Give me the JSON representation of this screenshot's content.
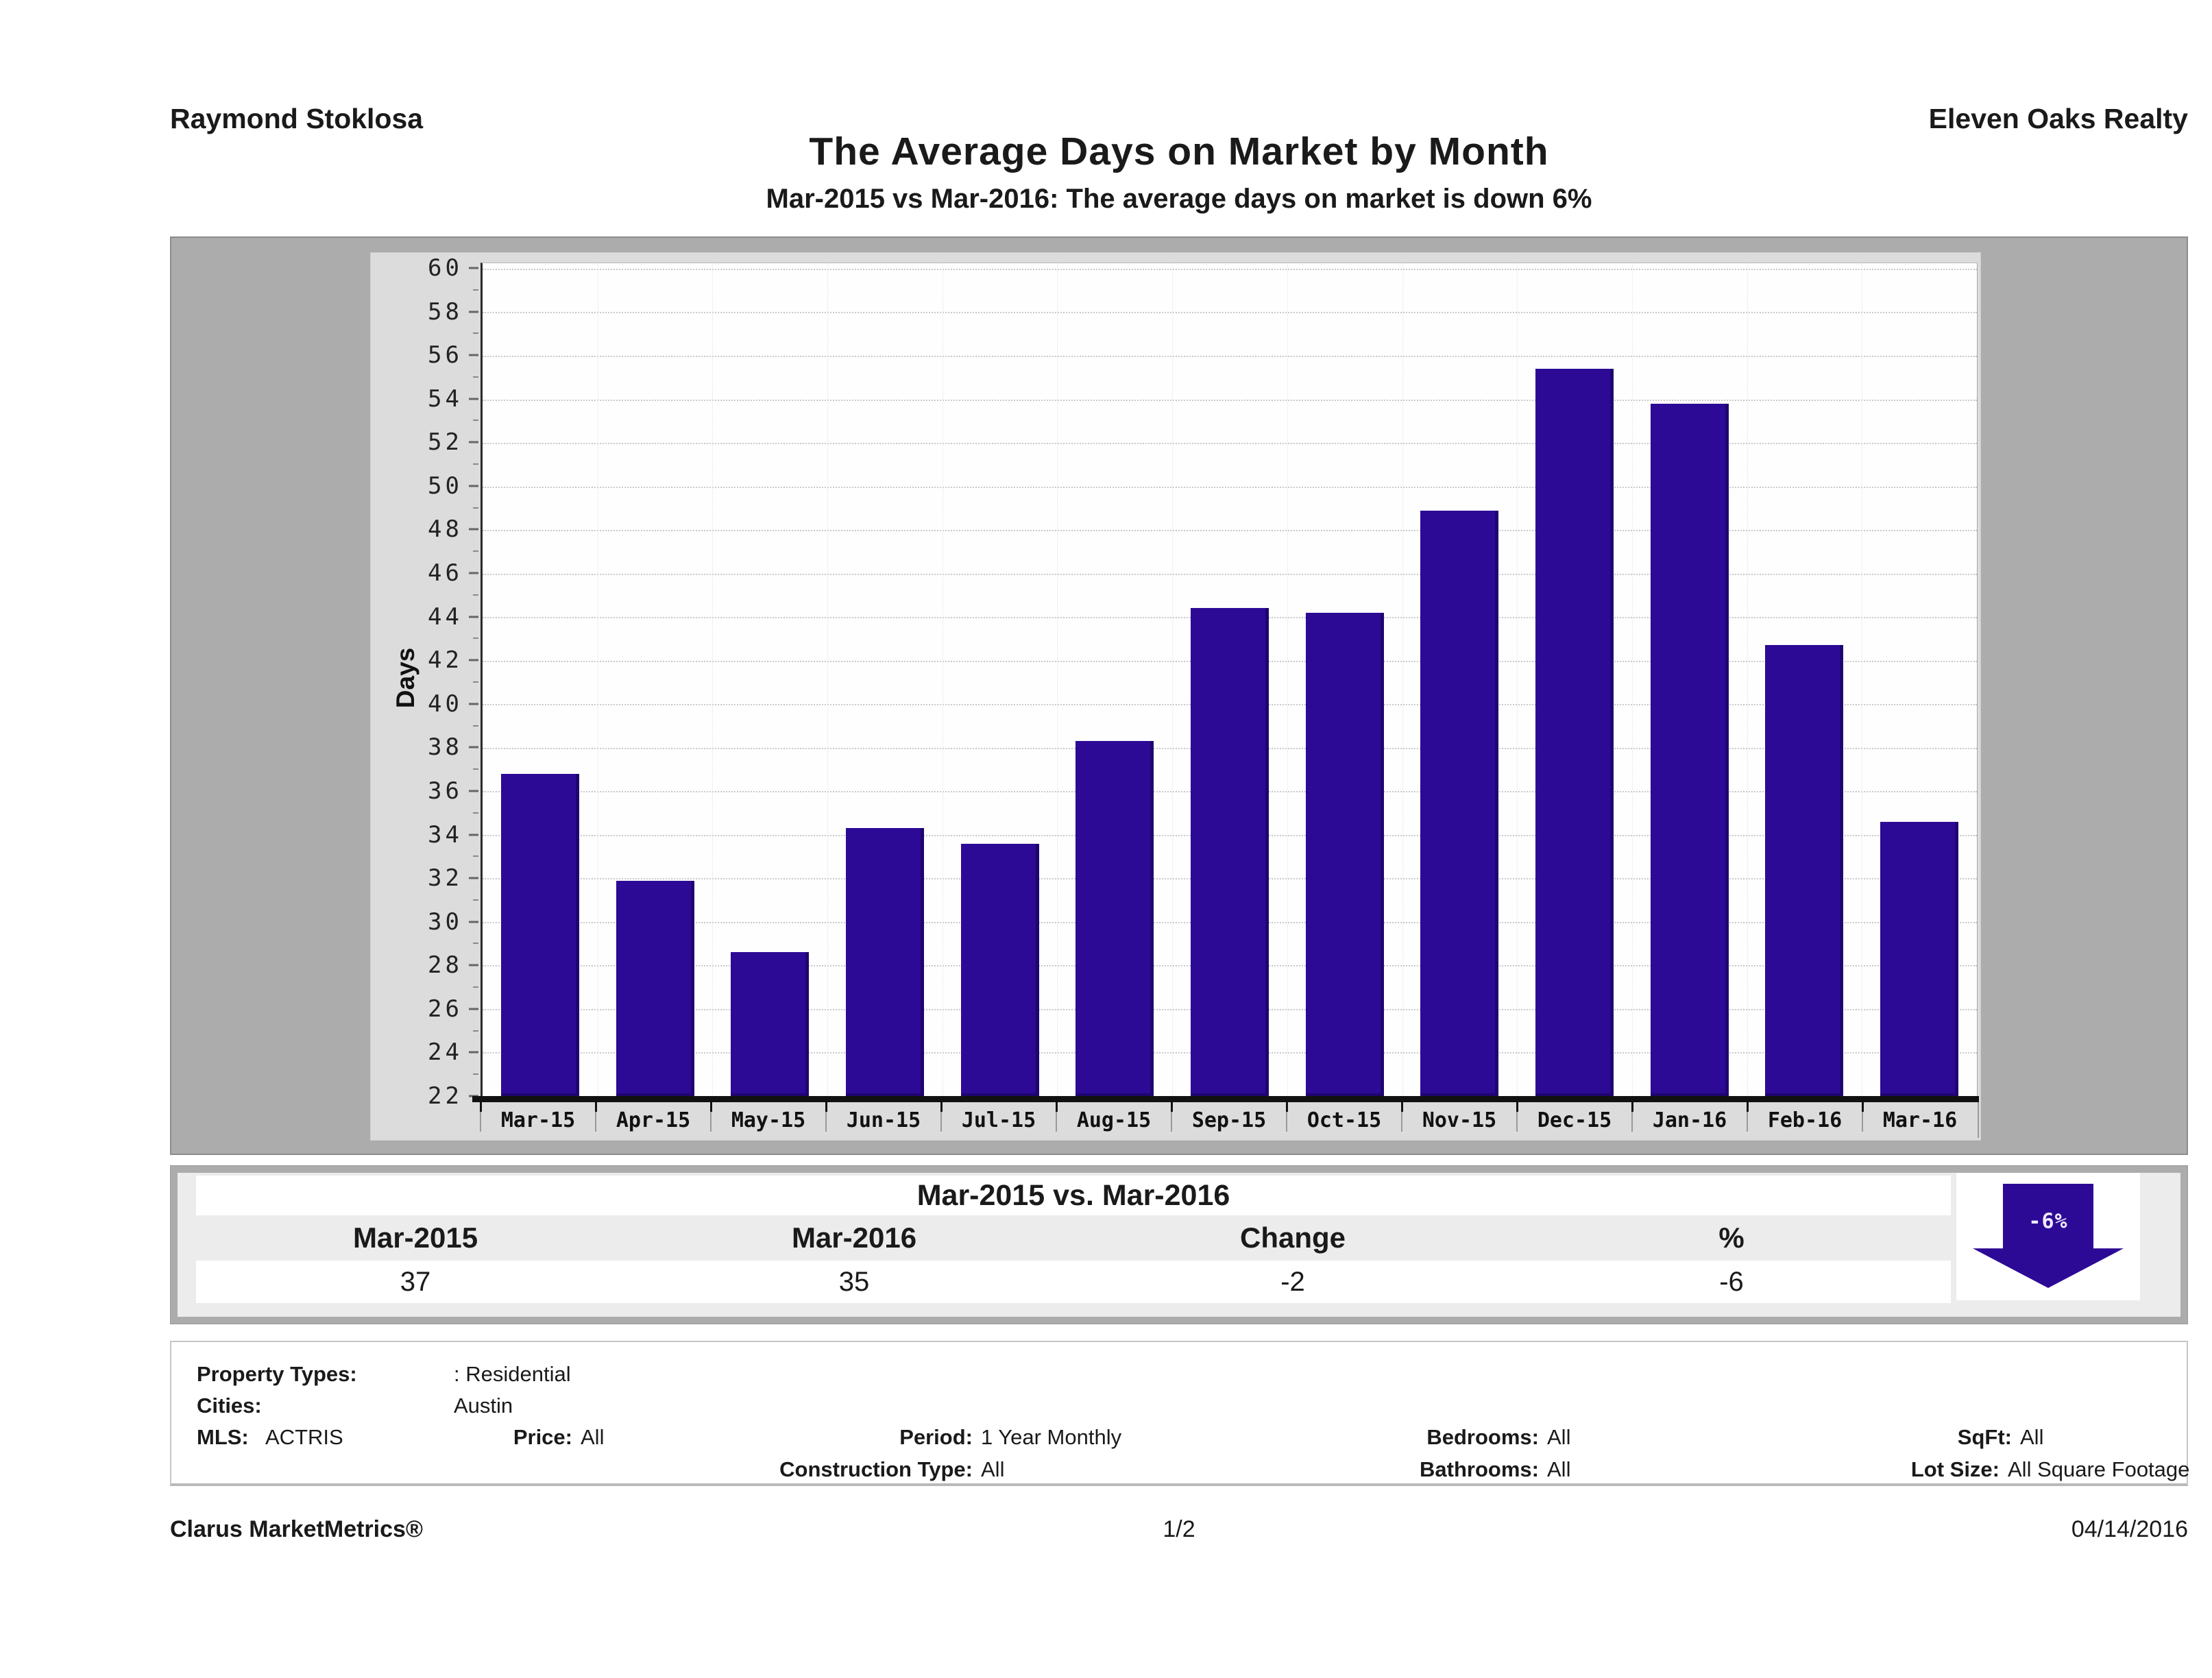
{
  "header": {
    "agent_name": "Raymond Stoklosa",
    "company": "Eleven Oaks Realty"
  },
  "title": "The Average Days on Market by Month",
  "subtitle": "Mar-2015 vs Mar-2016: The average days on market is down 6%",
  "chart_data": {
    "type": "bar",
    "title": "The Average Days on Market by Month",
    "xlabel": "",
    "ylabel": "Days",
    "ylim": [
      22,
      60
    ],
    "ytick_step": 2,
    "grid": true,
    "legend": "none",
    "bar_color": "#2d0a96",
    "categories": [
      "Mar-15",
      "Apr-15",
      "May-15",
      "Jun-15",
      "Jul-15",
      "Aug-15",
      "Sep-15",
      "Oct-15",
      "Nov-15",
      "Dec-15",
      "Jan-16",
      "Feb-16",
      "Mar-16"
    ],
    "values": [
      36.8,
      31.9,
      28.6,
      34.3,
      33.6,
      38.3,
      44.4,
      44.2,
      48.9,
      55.4,
      53.8,
      42.7,
      34.6
    ]
  },
  "summary_table": {
    "title": "Mar-2015 vs. Mar-2016",
    "columns": [
      "Mar-2015",
      "Mar-2016",
      "Change",
      "%"
    ],
    "values": [
      "37",
      "35",
      "-2",
      "-6"
    ],
    "arrow_label": "-6%",
    "arrow_color": "#2d0a96",
    "arrow_direction": "down"
  },
  "criteria": {
    "property_types_label": "Property Types:",
    "property_types_value": ": Residential",
    "cities_label": "Cities:",
    "cities_value": "Austin",
    "mls_label": "MLS:",
    "mls_value": "ACTRIS",
    "price_label": "Price:",
    "price_value": "All",
    "period_label": "Period:",
    "period_value": "1 Year Monthly",
    "bedrooms_label": "Bedrooms:",
    "bedrooms_value": "All",
    "sqft_label": "SqFt:",
    "sqft_value": "All",
    "construction_label": "Construction Type:",
    "construction_value": "All",
    "bathrooms_label": "Bathrooms:",
    "bathrooms_value": "All",
    "lot_size_label": "Lot Size:",
    "lot_size_value": "All Square Footage"
  },
  "footer": {
    "brand": "Clarus MarketMetrics®",
    "page": "1/2",
    "date": "04/14/2016"
  }
}
